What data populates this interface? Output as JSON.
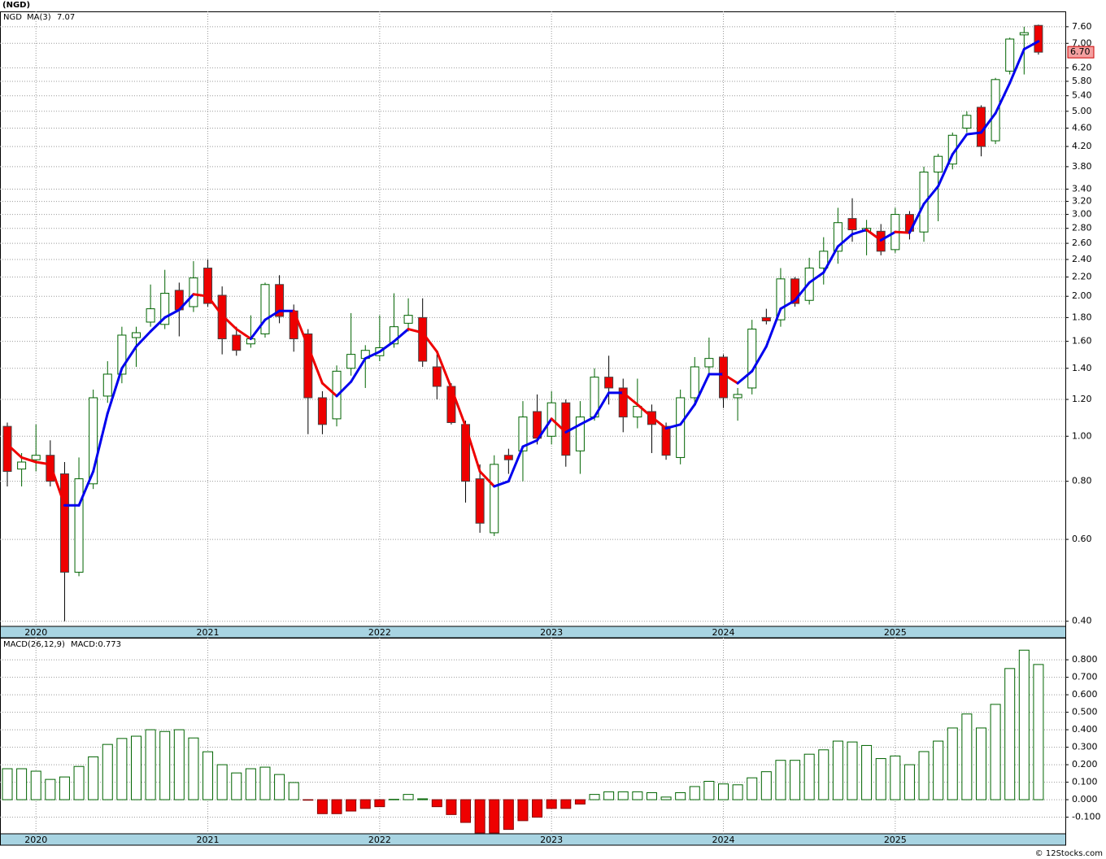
{
  "chart_data": [
    {
      "type": "candlestick",
      "title": "(NGD)",
      "log_scale": true,
      "grid": true,
      "categories": [
        null,
        null,
        "2020",
        null,
        null,
        null,
        null,
        null,
        null,
        null,
        null,
        null,
        null,
        null,
        "2021",
        null,
        null,
        null,
        null,
        null,
        null,
        null,
        null,
        null,
        null,
        null,
        "2022",
        null,
        null,
        null,
        null,
        null,
        null,
        null,
        null,
        null,
        null,
        null,
        "2023",
        null,
        null,
        null,
        null,
        null,
        null,
        null,
        null,
        null,
        null,
        null,
        "2024",
        null,
        null,
        null,
        null,
        null,
        null,
        null,
        null,
        null,
        null,
        null,
        "2025",
        null,
        null,
        null,
        null,
        null,
        null,
        null,
        null,
        null,
        null
      ],
      "ylim": [
        0.39,
        8.2
      ],
      "yticks": [
        {
          "value": 0.4,
          "label": "0.40"
        },
        {
          "value": 0.6,
          "label": "0.60"
        },
        {
          "value": 0.8,
          "label": "0.80"
        },
        {
          "value": 1.0,
          "label": "1.00"
        },
        {
          "value": 1.2,
          "label": "1.20"
        },
        {
          "value": 1.4,
          "label": "1.40"
        },
        {
          "value": 1.6,
          "label": "1.60"
        },
        {
          "value": 1.8,
          "label": "1.80"
        },
        {
          "value": 2.0,
          "label": "2.00"
        },
        {
          "value": 2.2,
          "label": "2.20"
        },
        {
          "value": 2.4,
          "label": "2.40"
        },
        {
          "value": 2.6,
          "label": "2.60"
        },
        {
          "value": 2.8,
          "label": "2.80"
        },
        {
          "value": 3.0,
          "label": "3.00"
        },
        {
          "value": 3.2,
          "label": "3.20"
        },
        {
          "value": 3.4,
          "label": "3.40"
        },
        {
          "value": 3.8,
          "label": "3.80"
        },
        {
          "value": 4.2,
          "label": "4.20"
        },
        {
          "value": 4.6,
          "label": "4.60"
        },
        {
          "value": 5.0,
          "label": "5.00"
        },
        {
          "value": 5.4,
          "label": "5.40"
        },
        {
          "value": 5.8,
          "label": "5.80"
        },
        {
          "value": 6.2,
          "label": "6.20"
        },
        {
          "value": 7.0,
          "label": "7.00"
        },
        {
          "value": 7.6,
          "label": "7.60"
        }
      ],
      "series": [
        {
          "name": "NGD",
          "color": "#006400",
          "down_color": "#ee0000",
          "open": [
            1.05,
            0.85,
            0.89,
            0.91,
            0.83,
            0.51,
            0.79,
            1.22,
            1.36,
            1.63,
            1.76,
            1.74,
            2.06,
            1.9,
            2.3,
            2.01,
            1.65,
            1.58,
            1.66,
            2.12,
            1.86,
            1.66,
            1.21,
            1.09,
            1.4,
            1.47,
            1.49,
            1.58,
            1.75,
            1.8,
            1.41,
            1.28,
            1.06,
            0.81,
            0.62,
            0.91,
            0.93,
            1.13,
            1.0,
            1.18,
            0.93,
            1.1,
            1.34,
            1.27,
            1.1,
            1.13,
            1.05,
            0.9,
            1.21,
            1.41,
            1.48,
            1.21,
            1.27,
            1.8,
            1.78,
            2.18,
            1.96,
            2.3,
            2.5,
            2.94,
            2.76,
            2.76,
            2.52,
            3.0,
            2.75,
            3.7,
            3.85,
            4.6,
            5.1,
            4.32,
            6.1,
            7.3,
            7.65
          ],
          "high": [
            1.07,
            0.92,
            1.06,
            0.98,
            0.88,
            0.9,
            1.26,
            1.45,
            1.72,
            1.72,
            2.12,
            2.28,
            2.14,
            2.38,
            2.4,
            2.1,
            1.72,
            1.82,
            2.14,
            2.22,
            1.92,
            1.7,
            1.25,
            1.42,
            1.84,
            1.57,
            1.82,
            2.03,
            1.98,
            1.98,
            1.5,
            1.3,
            1.08,
            0.87,
            0.91,
            0.94,
            1.19,
            1.23,
            1.25,
            1.2,
            1.19,
            1.4,
            1.49,
            1.33,
            1.33,
            1.17,
            1.07,
            1.26,
            1.48,
            1.63,
            1.5,
            1.27,
            1.78,
            1.88,
            2.3,
            2.2,
            2.42,
            2.68,
            3.1,
            3.25,
            2.92,
            2.86,
            3.1,
            3.05,
            3.8,
            4.05,
            4.5,
            5.0,
            5.15,
            5.9,
            7.2,
            7.6,
            7.68
          ],
          "low": [
            0.78,
            0.78,
            0.84,
            0.78,
            0.4,
            0.5,
            0.77,
            1.18,
            1.3,
            1.41,
            1.72,
            1.7,
            1.64,
            1.85,
            1.9,
            1.5,
            1.49,
            1.55,
            1.63,
            1.75,
            1.52,
            1.01,
            1.01,
            1.05,
            1.35,
            1.27,
            1.45,
            1.55,
            1.68,
            1.41,
            1.2,
            1.06,
            0.72,
            0.62,
            0.61,
            0.83,
            0.8,
            0.96,
            0.96,
            0.86,
            0.83,
            1.08,
            1.17,
            1.02,
            1.04,
            0.92,
            0.89,
            0.87,
            1.18,
            1.34,
            1.15,
            1.08,
            1.23,
            1.74,
            1.72,
            1.9,
            1.92,
            2.12,
            2.35,
            2.62,
            2.45,
            2.45,
            2.48,
            2.65,
            2.62,
            2.9,
            3.75,
            4.5,
            4.0,
            4.25,
            6.0,
            6.0,
            6.62
          ],
          "close": [
            0.84,
            0.88,
            0.91,
            0.8,
            0.51,
            0.81,
            1.21,
            1.36,
            1.65,
            1.67,
            1.88,
            2.03,
            1.87,
            2.19,
            1.93,
            1.62,
            1.53,
            1.62,
            2.12,
            1.81,
            1.62,
            1.21,
            1.06,
            1.38,
            1.5,
            1.53,
            1.55,
            1.72,
            1.82,
            1.45,
            1.28,
            1.07,
            0.8,
            0.65,
            0.87,
            0.89,
            1.1,
            0.99,
            1.18,
            0.91,
            1.1,
            1.34,
            1.27,
            1.1,
            1.16,
            1.06,
            0.91,
            1.21,
            1.41,
            1.47,
            1.21,
            1.23,
            1.7,
            1.77,
            2.18,
            1.93,
            2.3,
            2.5,
            2.88,
            2.78,
            2.8,
            2.5,
            3.0,
            2.76,
            3.7,
            4.0,
            4.44,
            4.9,
            4.2,
            5.85,
            7.15,
            7.38,
            6.7
          ]
        },
        {
          "name": "MA(3)",
          "color": "#0000ee",
          "down_color": "#ee0000",
          "values": [
            0.96,
            0.9,
            0.88,
            0.87,
            0.71,
            0.71,
            0.84,
            1.12,
            1.4,
            1.56,
            1.68,
            1.8,
            1.87,
            2.02,
            2.0,
            1.82,
            1.7,
            1.62,
            1.78,
            1.86,
            1.86,
            1.56,
            1.3,
            1.22,
            1.31,
            1.47,
            1.52,
            1.6,
            1.7,
            1.67,
            1.52,
            1.27,
            1.05,
            0.84,
            0.78,
            0.8,
            0.95,
            0.98,
            1.09,
            1.02,
            1.06,
            1.1,
            1.24,
            1.24,
            1.17,
            1.1,
            1.04,
            1.06,
            1.17,
            1.36,
            1.36,
            1.3,
            1.38,
            1.56,
            1.88,
            1.96,
            2.14,
            2.25,
            2.56,
            2.72,
            2.78,
            2.64,
            2.75,
            2.74,
            3.16,
            3.45,
            4.04,
            4.46,
            4.5,
            4.95,
            5.75,
            6.8,
            7.07
          ]
        }
      ],
      "price_tag": {
        "value": 6.7,
        "label": "6.70"
      }
    },
    {
      "type": "bar",
      "macd_params": "MACD(26,12,9)",
      "macd_label": "MACD:0.773",
      "grid": true,
      "categories": [
        null,
        null,
        "2020",
        null,
        null,
        null,
        null,
        null,
        null,
        null,
        null,
        null,
        null,
        null,
        "2021",
        null,
        null,
        null,
        null,
        null,
        null,
        null,
        null,
        null,
        null,
        null,
        "2022",
        null,
        null,
        null,
        null,
        null,
        null,
        null,
        null,
        null,
        null,
        null,
        "2023",
        null,
        null,
        null,
        null,
        null,
        null,
        null,
        null,
        null,
        null,
        null,
        "2024",
        null,
        null,
        null,
        null,
        null,
        null,
        null,
        null,
        null,
        null,
        null,
        "2025",
        null,
        null,
        null,
        null,
        null,
        null,
        null,
        null,
        null,
        null
      ],
      "ylim": [
        -0.195,
        0.926
      ],
      "yticks": [
        {
          "value": -0.1,
          "label": "-0.100"
        },
        {
          "value": 0,
          "label": "0.000"
        },
        {
          "value": 0.1,
          "label": "0.100"
        },
        {
          "value": 0.2,
          "label": "0.200"
        },
        {
          "value": 0.3,
          "label": "0.300"
        },
        {
          "value": 0.4,
          "label": "0.400"
        },
        {
          "value": 0.5,
          "label": "0.500"
        },
        {
          "value": 0.6,
          "label": "0.600"
        },
        {
          "value": 0.7,
          "label": "0.700"
        },
        {
          "value": 0.8,
          "label": "0.800"
        }
      ],
      "color": "#006400",
      "down_color": "#ee0000",
      "values": [
        0.177,
        0.177,
        0.163,
        0.116,
        0.13,
        0.19,
        0.245,
        0.316,
        0.35,
        0.363,
        0.4,
        0.39,
        0.4,
        0.353,
        0.274,
        0.2,
        0.153,
        0.177,
        0.186,
        0.144,
        0.098,
        -0.003,
        -0.08,
        -0.08,
        -0.065,
        -0.05,
        -0.04,
        0.002,
        0.03,
        0.005,
        -0.04,
        -0.085,
        -0.13,
        -0.19,
        -0.19,
        -0.17,
        -0.12,
        -0.1,
        -0.05,
        -0.05,
        -0.025,
        0.03,
        0.045,
        0.045,
        0.045,
        0.04,
        0.015,
        0.04,
        0.075,
        0.105,
        0.09,
        0.085,
        0.125,
        0.16,
        0.225,
        0.225,
        0.26,
        0.285,
        0.335,
        0.33,
        0.31,
        0.235,
        0.25,
        0.2,
        0.275,
        0.335,
        0.41,
        0.49,
        0.41,
        0.545,
        0.75,
        0.855,
        0.773
      ]
    }
  ],
  "footer": "© 12Stocks.com"
}
